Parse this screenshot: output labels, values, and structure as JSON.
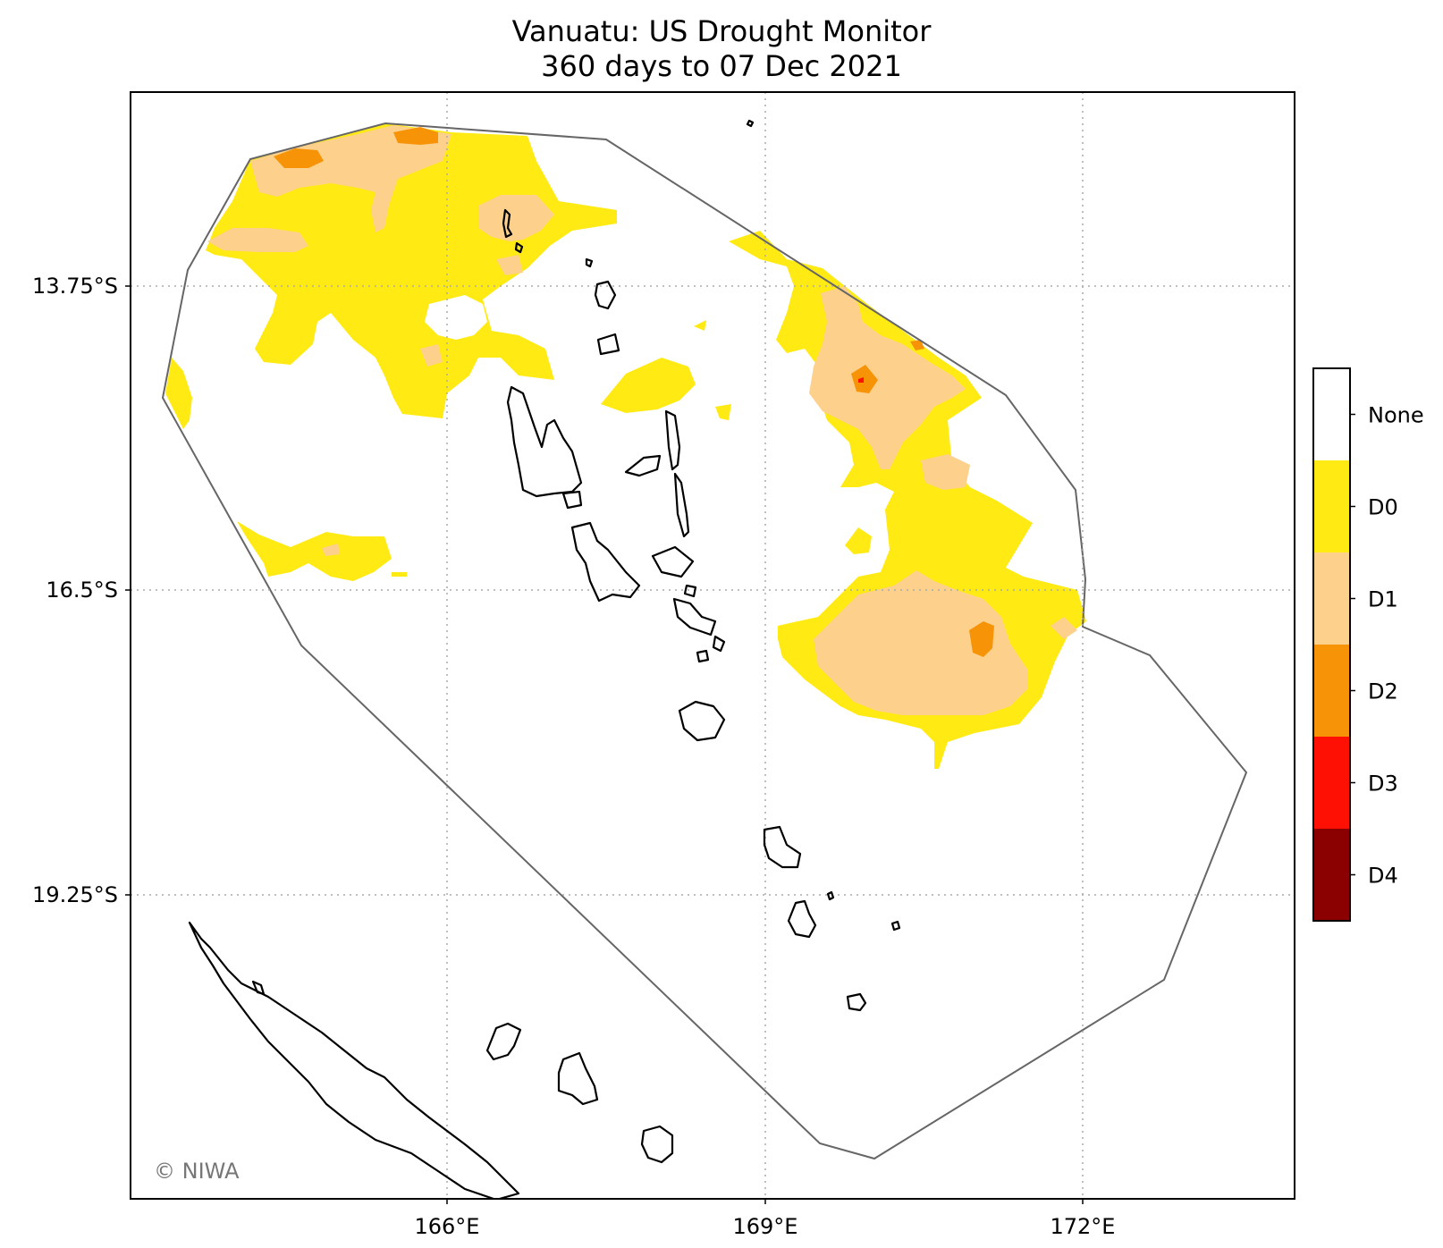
{
  "title": {
    "line1": "Vanuatu: US Drought Monitor",
    "line2": "360 days to 07 Dec 2021"
  },
  "map": {
    "lat_ticks": [
      "13.75°S",
      "16.5°S",
      "19.25°S"
    ],
    "lon_ticks": [
      "166°E",
      "169°E",
      "172°E"
    ],
    "gridlines": true,
    "credit": "© NIWA"
  },
  "legend": {
    "placement": "right",
    "classes": [
      {
        "label": "None",
        "color": "#ffffff"
      },
      {
        "label": "D0",
        "color": "#ffea14"
      },
      {
        "label": "D1",
        "color": "#fdd08c"
      },
      {
        "label": "D2",
        "color": "#f79306"
      },
      {
        "label": "D3",
        "color": "#fe1004"
      },
      {
        "label": "D4",
        "color": "#8b0000"
      }
    ]
  }
}
